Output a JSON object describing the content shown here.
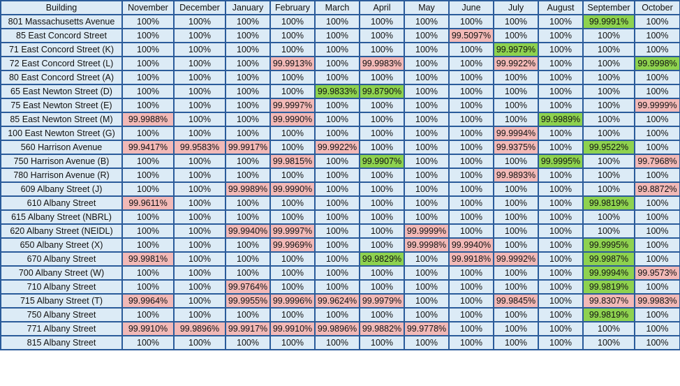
{
  "table": {
    "headers": [
      "Building",
      "November",
      "December",
      "January",
      "February",
      "March",
      "April",
      "May",
      "June",
      "July",
      "August",
      "September",
      "October"
    ],
    "colors": {
      "cell": "#dcebf6",
      "red": "#f2b9b7",
      "green": "#8ed24f",
      "border": "#2a5b9a"
    },
    "rows": [
      {
        "building": "801 Massachusetts Avenue",
        "values": [
          "100%",
          "100%",
          "100%",
          "100%",
          "100%",
          "100%",
          "100%",
          "100%",
          "100%",
          "100%",
          "99.9991%",
          "100%"
        ],
        "status": [
          "",
          "",
          "",
          "",
          "",
          "",
          "",
          "",
          "",
          "",
          "green",
          ""
        ]
      },
      {
        "building": "85 East Concord Street",
        "values": [
          "100%",
          "100%",
          "100%",
          "100%",
          "100%",
          "100%",
          "100%",
          "99.5097%",
          "100%",
          "100%",
          "100%",
          "100%"
        ],
        "status": [
          "",
          "",
          "",
          "",
          "",
          "",
          "",
          "red",
          "",
          "",
          "",
          ""
        ]
      },
      {
        "building": "71 East Concord Street (K)",
        "values": [
          "100%",
          "100%",
          "100%",
          "100%",
          "100%",
          "100%",
          "100%",
          "100%",
          "99.9979%",
          "100%",
          "100%",
          "100%"
        ],
        "status": [
          "",
          "",
          "",
          "",
          "",
          "",
          "",
          "",
          "green",
          "",
          "",
          ""
        ]
      },
      {
        "building": "72 East Concord Street (L)",
        "values": [
          "100%",
          "100%",
          "100%",
          "99.9913%",
          "100%",
          "99.9983%",
          "100%",
          "100%",
          "99.9922%",
          "100%",
          "100%",
          "99.9998%"
        ],
        "status": [
          "",
          "",
          "",
          "red",
          "",
          "red",
          "",
          "",
          "red",
          "",
          "",
          "green"
        ]
      },
      {
        "building": "80 East Concord Street (A)",
        "values": [
          "100%",
          "100%",
          "100%",
          "100%",
          "100%",
          "100%",
          "100%",
          "100%",
          "100%",
          "100%",
          "100%",
          "100%"
        ],
        "status": [
          "",
          "",
          "",
          "",
          "",
          "",
          "",
          "",
          "",
          "",
          "",
          ""
        ]
      },
      {
        "building": "65 East Newton Street (D)",
        "values": [
          "100%",
          "100%",
          "100%",
          "100%",
          "99.9833%",
          "99.8790%",
          "100%",
          "100%",
          "100%",
          "100%",
          "100%",
          "100%"
        ],
        "status": [
          "",
          "",
          "",
          "",
          "green",
          "green",
          "",
          "",
          "",
          "",
          "",
          ""
        ]
      },
      {
        "building": "75 East Newton Street (E)",
        "values": [
          "100%",
          "100%",
          "100%",
          "99.9997%",
          "100%",
          "100%",
          "100%",
          "100%",
          "100%",
          "100%",
          "100%",
          "99.9999%"
        ],
        "status": [
          "",
          "",
          "",
          "red",
          "",
          "",
          "",
          "",
          "",
          "",
          "",
          "red"
        ]
      },
      {
        "building": "85 East Newton Street (M)",
        "values": [
          "99.9988%",
          "100%",
          "100%",
          "99.9990%",
          "100%",
          "100%",
          "100%",
          "100%",
          "100%",
          "99.9989%",
          "100%",
          "100%"
        ],
        "status": [
          "red",
          "",
          "",
          "red",
          "",
          "",
          "",
          "",
          "",
          "green",
          "",
          ""
        ]
      },
      {
        "building": "100 East Newton Street (G)",
        "values": [
          "100%",
          "100%",
          "100%",
          "100%",
          "100%",
          "100%",
          "100%",
          "100%",
          "99.9994%",
          "100%",
          "100%",
          "100%"
        ],
        "status": [
          "",
          "",
          "",
          "",
          "",
          "",
          "",
          "",
          "red",
          "",
          "",
          ""
        ]
      },
      {
        "building": "560 Harrison Avenue",
        "values": [
          "99.9417%",
          "99.9583%",
          "99.9917%",
          "100%",
          "99.9922%",
          "100%",
          "100%",
          "100%",
          "99.9375%",
          "100%",
          "99.9522%",
          "100%"
        ],
        "status": [
          "red",
          "red",
          "red",
          "",
          "red",
          "",
          "",
          "",
          "red",
          "",
          "green",
          ""
        ]
      },
      {
        "building": "750 Harrison Avenue (B)",
        "values": [
          "100%",
          "100%",
          "100%",
          "99.9815%",
          "100%",
          "99.9907%",
          "100%",
          "100%",
          "100%",
          "99.9995%",
          "100%",
          "99.7968%"
        ],
        "status": [
          "",
          "",
          "",
          "red",
          "",
          "green",
          "",
          "",
          "",
          "green",
          "",
          "red"
        ]
      },
      {
        "building": "780 Harrison Avenue (R)",
        "values": [
          "100%",
          "100%",
          "100%",
          "100%",
          "100%",
          "100%",
          "100%",
          "100%",
          "99.9893%",
          "100%",
          "100%",
          "100%"
        ],
        "status": [
          "",
          "",
          "",
          "",
          "",
          "",
          "",
          "",
          "red",
          "",
          "",
          ""
        ]
      },
      {
        "building": "609 Albany Street (J)",
        "values": [
          "100%",
          "100%",
          "99.9989%",
          "99.9990%",
          "100%",
          "100%",
          "100%",
          "100%",
          "100%",
          "100%",
          "100%",
          "99.8872%"
        ],
        "status": [
          "",
          "",
          "red",
          "red",
          "",
          "",
          "",
          "",
          "",
          "",
          "",
          "red"
        ]
      },
      {
        "building": "610 Albany Street",
        "values": [
          "99.9611%",
          "100%",
          "100%",
          "100%",
          "100%",
          "100%",
          "100%",
          "100%",
          "100%",
          "100%",
          "99.9819%",
          "100%"
        ],
        "status": [
          "red",
          "",
          "",
          "",
          "",
          "",
          "",
          "",
          "",
          "",
          "green",
          ""
        ]
      },
      {
        "building": "615 Albany Street (NBRL)",
        "values": [
          "100%",
          "100%",
          "100%",
          "100%",
          "100%",
          "100%",
          "100%",
          "100%",
          "100%",
          "100%",
          "100%",
          "100%"
        ],
        "status": [
          "",
          "",
          "",
          "",
          "",
          "",
          "",
          "",
          "",
          "",
          "",
          ""
        ]
      },
      {
        "building": "620 Albany Street (NEIDL)",
        "values": [
          "100%",
          "100%",
          "99.9940%",
          "99.9997%",
          "100%",
          "100%",
          "99.9999%",
          "100%",
          "100%",
          "100%",
          "100%",
          "100%"
        ],
        "status": [
          "",
          "",
          "red",
          "red",
          "",
          "",
          "red",
          "",
          "",
          "",
          "",
          ""
        ]
      },
      {
        "building": "650 Albany Street (X)",
        "values": [
          "100%",
          "100%",
          "100%",
          "99.9969%",
          "100%",
          "100%",
          "99.9998%",
          "99.9940%",
          "100%",
          "100%",
          "99.9995%",
          "100%"
        ],
        "status": [
          "",
          "",
          "",
          "red",
          "",
          "",
          "red",
          "red",
          "",
          "",
          "green",
          ""
        ]
      },
      {
        "building": "670 Albany Street",
        "values": [
          "99.9981%",
          "100%",
          "100%",
          "100%",
          "100%",
          "99.9829%",
          "100%",
          "99.9918%",
          "99.9992%",
          "100%",
          "99.9987%",
          "100%"
        ],
        "status": [
          "red",
          "",
          "",
          "",
          "",
          "green",
          "",
          "red",
          "red",
          "",
          "green",
          ""
        ]
      },
      {
        "building": "700 Albany Street (W)",
        "values": [
          "100%",
          "100%",
          "100%",
          "100%",
          "100%",
          "100%",
          "100%",
          "100%",
          "100%",
          "100%",
          "99.9994%",
          "99.9573%"
        ],
        "status": [
          "",
          "",
          "",
          "",
          "",
          "",
          "",
          "",
          "",
          "",
          "green",
          "red"
        ]
      },
      {
        "building": "710 Albany Street",
        "values": [
          "100%",
          "100%",
          "99.9764%",
          "100%",
          "100%",
          "100%",
          "100%",
          "100%",
          "100%",
          "100%",
          "99.9819%",
          "100%"
        ],
        "status": [
          "",
          "",
          "red",
          "",
          "",
          "",
          "",
          "",
          "",
          "",
          "green",
          ""
        ]
      },
      {
        "building": "715 Albany Street (T)",
        "values": [
          "99.9964%",
          "100%",
          "99.9955%",
          "99.9996%",
          "99.9624%",
          "99.9979%",
          "100%",
          "100%",
          "99.9845%",
          "100%",
          "99.8307%",
          "99.9983%"
        ],
        "status": [
          "red",
          "",
          "red",
          "red",
          "red",
          "red",
          "",
          "",
          "red",
          "",
          "red",
          "red"
        ]
      },
      {
        "building": "750 Albany Street",
        "values": [
          "100%",
          "100%",
          "100%",
          "100%",
          "100%",
          "100%",
          "100%",
          "100%",
          "100%",
          "100%",
          "99.9819%",
          "100%"
        ],
        "status": [
          "",
          "",
          "",
          "",
          "",
          "",
          "",
          "",
          "",
          "",
          "green",
          ""
        ]
      },
      {
        "building": "771 Albany Street",
        "values": [
          "99.9910%",
          "99.9896%",
          "99.9917%",
          "99.9910%",
          "99.9896%",
          "99.9882%",
          "99.9778%",
          "100%",
          "100%",
          "100%",
          "100%",
          "100%"
        ],
        "status": [
          "red",
          "red",
          "red",
          "red",
          "red",
          "red",
          "red",
          "",
          "",
          "",
          "",
          ""
        ]
      },
      {
        "building": "815 Albany Street",
        "values": [
          "100%",
          "100%",
          "100%",
          "100%",
          "100%",
          "100%",
          "100%",
          "100%",
          "100%",
          "100%",
          "100%",
          "100%"
        ],
        "status": [
          "",
          "",
          "",
          "",
          "",
          "",
          "",
          "",
          "",
          "",
          "",
          ""
        ]
      }
    ]
  }
}
